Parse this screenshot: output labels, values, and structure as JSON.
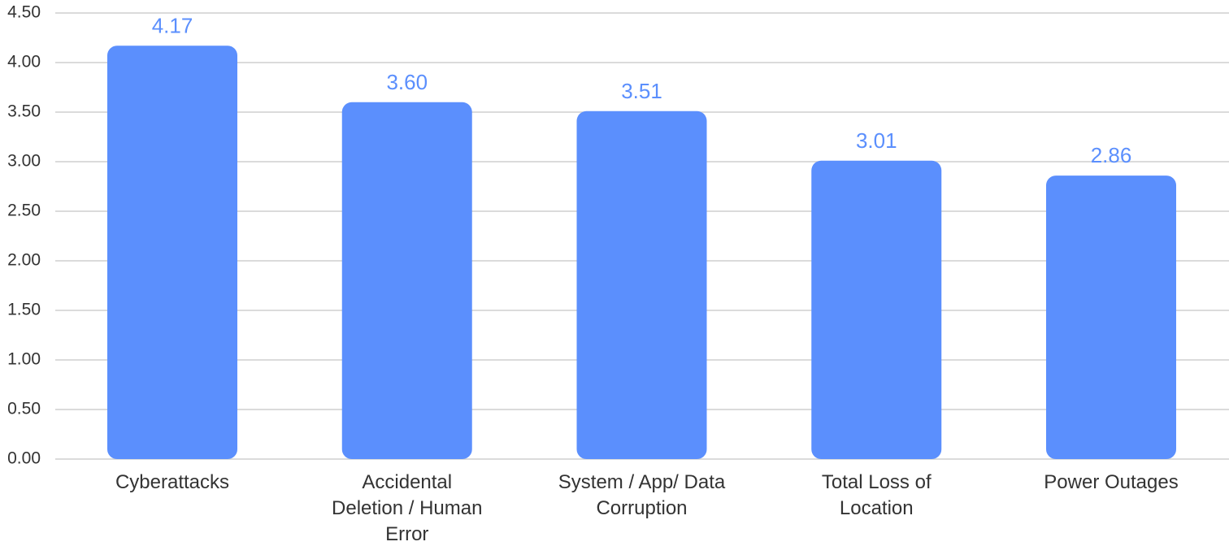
{
  "chart_data": {
    "type": "bar",
    "title": "",
    "xlabel": "",
    "ylabel": "",
    "categories": [
      "Cyberattacks",
      "Accidental Deletion / Human Error",
      "System / App/ Data Corruption",
      "Total Loss of Location",
      "Power Outages"
    ],
    "category_lines": [
      [
        "Cyberattacks"
      ],
      [
        "Accidental",
        "Deletion / Human",
        "Error"
      ],
      [
        "System / App/ Data",
        "Corruption"
      ],
      [
        "Total Loss of",
        "Location"
      ],
      [
        "Power Outages"
      ]
    ],
    "values": [
      4.17,
      3.6,
      3.51,
      3.01,
      2.86
    ],
    "data_labels": [
      "4.17",
      "3.60",
      "3.51",
      "3.01",
      "2.86"
    ],
    "y_ticks": [
      0.0,
      0.5,
      1.0,
      1.5,
      2.0,
      2.5,
      3.0,
      3.5,
      4.0,
      4.5
    ],
    "y_tick_labels": [
      "0.00",
      "0.50",
      "1.00",
      "1.50",
      "2.00",
      "2.50",
      "3.00",
      "3.50",
      "4.00",
      "4.50"
    ],
    "ylim": [
      0,
      4.5
    ],
    "grid": true,
    "legend": "none",
    "colors": {
      "bar": "#5b8ffd",
      "data_label": "#5b8ffd",
      "grid": "#cfcfcf",
      "text": "#333333"
    }
  }
}
